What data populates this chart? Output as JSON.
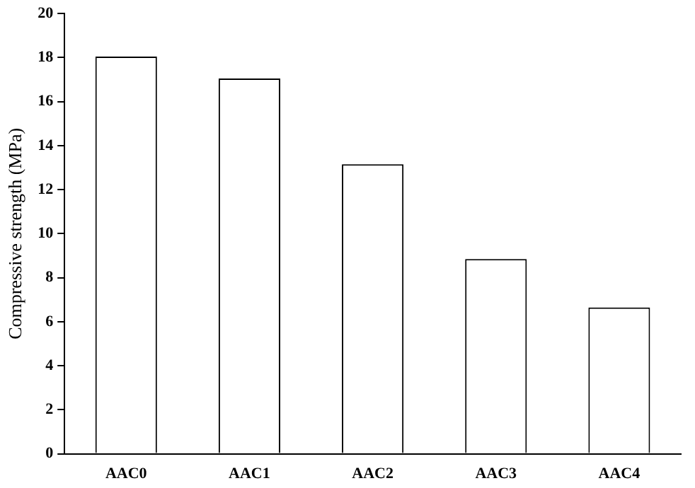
{
  "chart_data": {
    "type": "bar",
    "ylabel": "Compressive strength (MPa)",
    "categories": [
      "AAC0",
      "AAC1",
      "AAC2",
      "AAC3",
      "AAC4"
    ],
    "values": [
      18.05,
      17.05,
      13.15,
      8.85,
      6.65
    ],
    "color": "#ffffff",
    "ylim": [
      0,
      20
    ],
    "yticks": [
      0,
      2,
      4,
      6,
      8,
      10,
      12,
      14,
      16,
      18,
      20
    ],
    "grid": false,
    "legend": false
  }
}
